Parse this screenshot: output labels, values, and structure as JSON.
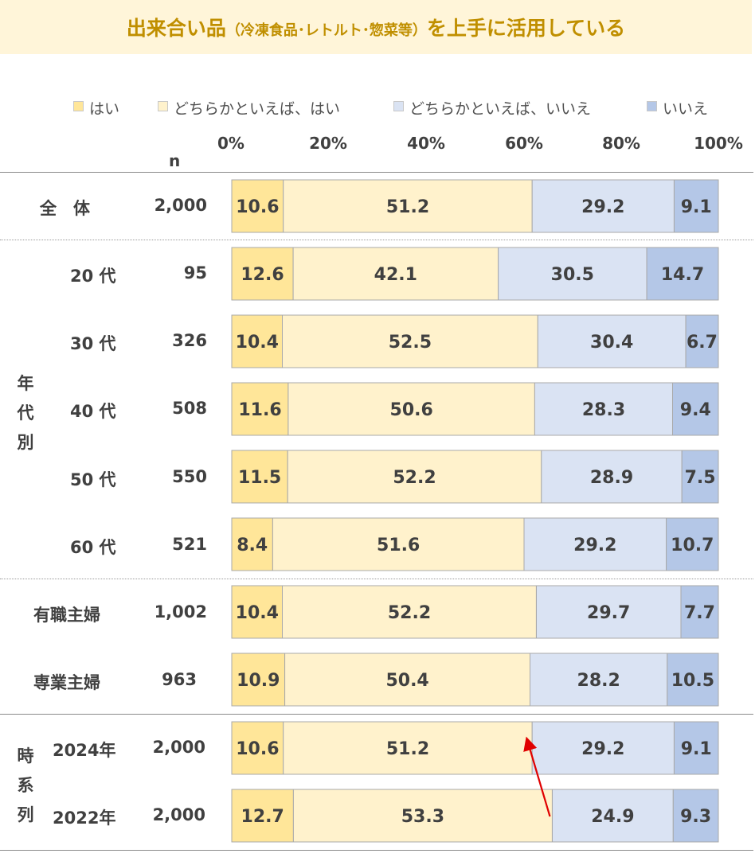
{
  "title": {
    "main_a": "出来合い品",
    "sub": "（冷凍食品･レトルト･惣菜等）",
    "main_b": "を上手に活用している"
  },
  "colors": {
    "title_bg": "#fff5d9",
    "title_text": "#c08f00",
    "series": [
      "#ffe699",
      "#fff2cc",
      "#dae3f3",
      "#b4c7e7"
    ],
    "arrow": "#e00000"
  },
  "n_header": "n",
  "group_labels": {
    "age": "年代別",
    "timeline": "時系列"
  },
  "chart_data": {
    "type": "bar",
    "orientation": "horizontal",
    "stacked": true,
    "xlim": [
      0,
      100
    ],
    "x_ticks": [
      "0%",
      "20%",
      "40%",
      "60%",
      "80%",
      "100%"
    ],
    "legend_position": "top",
    "series": [
      {
        "name": "はい",
        "color": "#ffe699"
      },
      {
        "name": "どちらかといえば、はい",
        "color": "#fff2cc"
      },
      {
        "name": "どちらかといえば、いいえ",
        "color": "#dae3f3"
      },
      {
        "name": "いいえ",
        "color": "#b4c7e7"
      }
    ],
    "rows": [
      {
        "label": "全　体",
        "n": "2,000",
        "values": [
          10.6,
          51.2,
          29.2,
          9.1
        ]
      },
      {
        "label": "20 代",
        "n": "95",
        "values": [
          12.6,
          42.1,
          30.5,
          14.7
        ]
      },
      {
        "label": "30 代",
        "n": "326",
        "values": [
          10.4,
          52.5,
          30.4,
          6.7
        ]
      },
      {
        "label": "40 代",
        "n": "508",
        "values": [
          11.6,
          50.6,
          28.3,
          9.4
        ]
      },
      {
        "label": "50 代",
        "n": "550",
        "values": [
          11.5,
          52.2,
          28.9,
          7.5
        ]
      },
      {
        "label": "60 代",
        "n": "521",
        "values": [
          8.4,
          51.6,
          29.2,
          10.7
        ]
      },
      {
        "label": "有職主婦",
        "n": "1,002",
        "values": [
          10.4,
          52.2,
          29.7,
          7.7
        ]
      },
      {
        "label": "専業主婦",
        "n": "963",
        "values": [
          10.9,
          50.4,
          28.2,
          10.5
        ]
      },
      {
        "label": "2024年",
        "n": "2,000",
        "values": [
          10.6,
          51.2,
          29.2,
          9.1
        ]
      },
      {
        "label": "2022年",
        "n": "2,000",
        "values": [
          12.7,
          53.3,
          24.9,
          9.3
        ]
      }
    ],
    "annotation": "arrow from 2022年 top-2-box boundary up to 2024年 boundary"
  }
}
